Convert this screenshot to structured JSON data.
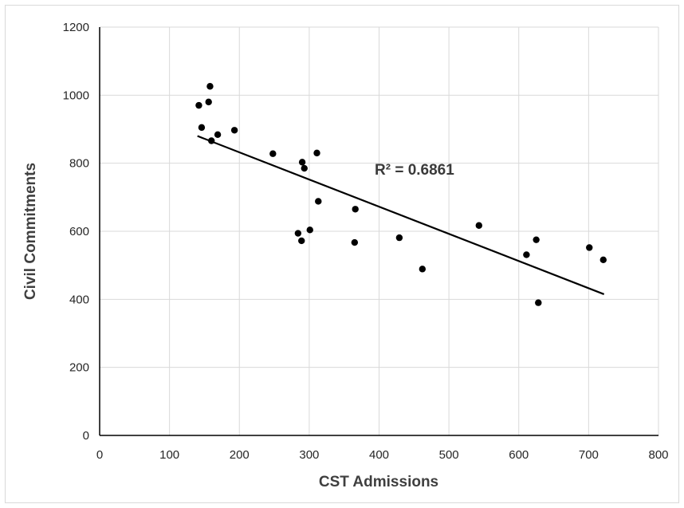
{
  "chart_data": {
    "type": "scatter",
    "title": "",
    "xlabel": "CST Admissions",
    "ylabel": "Civil Commitments",
    "xlim": [
      0,
      800
    ],
    "ylim": [
      0,
      1200
    ],
    "xticks": [
      0,
      100,
      200,
      300,
      400,
      500,
      600,
      700,
      800
    ],
    "yticks": [
      0,
      200,
      400,
      600,
      800,
      1000,
      1200
    ],
    "grid": true,
    "legend": "none",
    "points": [
      {
        "x": 142,
        "y": 970
      },
      {
        "x": 146,
        "y": 905
      },
      {
        "x": 156,
        "y": 980
      },
      {
        "x": 158,
        "y": 1026
      },
      {
        "x": 160,
        "y": 866
      },
      {
        "x": 169,
        "y": 884
      },
      {
        "x": 193,
        "y": 897
      },
      {
        "x": 248,
        "y": 828
      },
      {
        "x": 284,
        "y": 594
      },
      {
        "x": 289,
        "y": 572
      },
      {
        "x": 290,
        "y": 803
      },
      {
        "x": 293,
        "y": 785
      },
      {
        "x": 301,
        "y": 604
      },
      {
        "x": 311,
        "y": 830
      },
      {
        "x": 313,
        "y": 688
      },
      {
        "x": 365,
        "y": 567
      },
      {
        "x": 366,
        "y": 665
      },
      {
        "x": 429,
        "y": 581
      },
      {
        "x": 462,
        "y": 489
      },
      {
        "x": 543,
        "y": 617
      },
      {
        "x": 611,
        "y": 531
      },
      {
        "x": 625,
        "y": 575
      },
      {
        "x": 628,
        "y": 390
      },
      {
        "x": 701,
        "y": 552
      },
      {
        "x": 721,
        "y": 516
      }
    ],
    "trendline": {
      "type": "linear",
      "x": [
        140,
        722
      ],
      "y": [
        880,
        415
      ]
    },
    "annotation": "R² = 0.6861",
    "colors": {
      "points": "#000000",
      "trendline": "#000000",
      "grid": "#d9d9d9",
      "axis": "#000000"
    }
  }
}
